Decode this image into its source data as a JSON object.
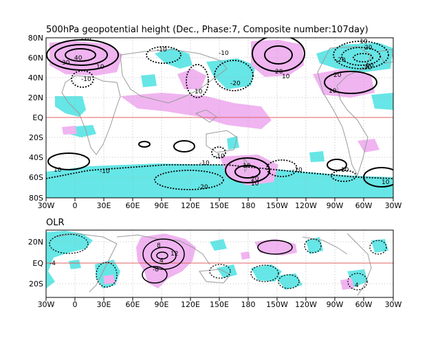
{
  "colors": {
    "positive_shade": "#f0b4f0",
    "negative_shade": "#66e6e6",
    "coast": "#9a9a9a",
    "equator": "#e06060",
    "grid": "#b0b0b0",
    "contour": "#000000"
  },
  "top_panel": {
    "title": "500hPa geopotential height (Dec., Phase:7, Composite number:107day)",
    "lat_labels": [
      "80N",
      "60N",
      "40N",
      "20N",
      "EQ",
      "20S",
      "40S",
      "60S",
      "80S"
    ],
    "lon_labels": [
      "30W",
      "0",
      "30E",
      "60E",
      "90E",
      "120E",
      "150E",
      "180",
      "150W",
      "120W",
      "90W",
      "60W",
      "30W"
    ],
    "contour_labels": [
      "-20",
      "40",
      "30",
      "-10",
      "10",
      "-10",
      "-10",
      "20",
      "10",
      "-20",
      "-10",
      "20",
      "10",
      "-30",
      "-20",
      "20",
      "10",
      "10",
      "-10",
      "-10",
      "-20",
      "-10",
      "20",
      "-10",
      "10",
      "10",
      "10",
      "10",
      "-10"
    ]
  },
  "bottom_panel": {
    "title": "OLR",
    "lat_labels": [
      "20N",
      "EQ",
      "20S"
    ],
    "lon_labels": [
      "30W",
      "0",
      "30E",
      "60E",
      "90E",
      "120E",
      "150E",
      "180",
      "150W",
      "120W",
      "90W",
      "60W",
      "30W"
    ],
    "contour_labels": [
      "-4",
      "8",
      "12",
      "4",
      "-8",
      "4"
    ]
  }
}
